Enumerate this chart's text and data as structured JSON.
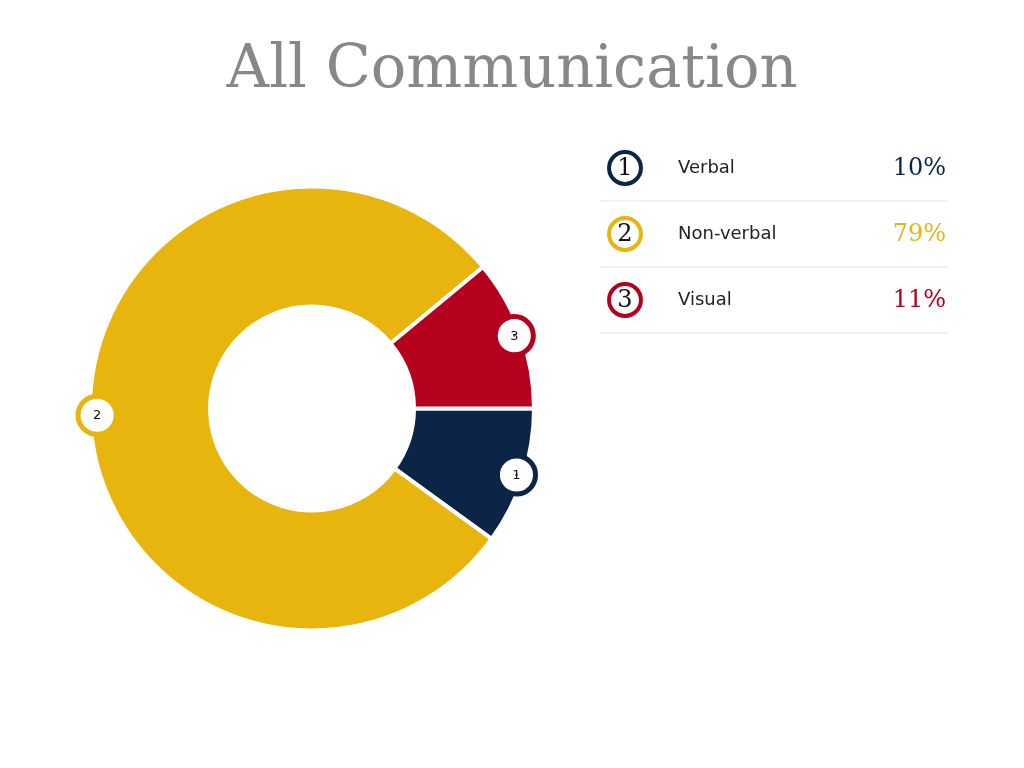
{
  "chart_data": {
    "type": "donut",
    "title": "All Communication",
    "categories": [
      "Verbal",
      "Non-verbal",
      "Visual"
    ],
    "values": [
      10,
      79,
      11
    ],
    "colors": [
      "#0c2445",
      "#e8b50f",
      "#b5001e"
    ],
    "value_labels": [
      "10%",
      "79%",
      "11%"
    ],
    "annotations": [
      "1",
      "2",
      "3"
    ],
    "legend": "top right"
  }
}
